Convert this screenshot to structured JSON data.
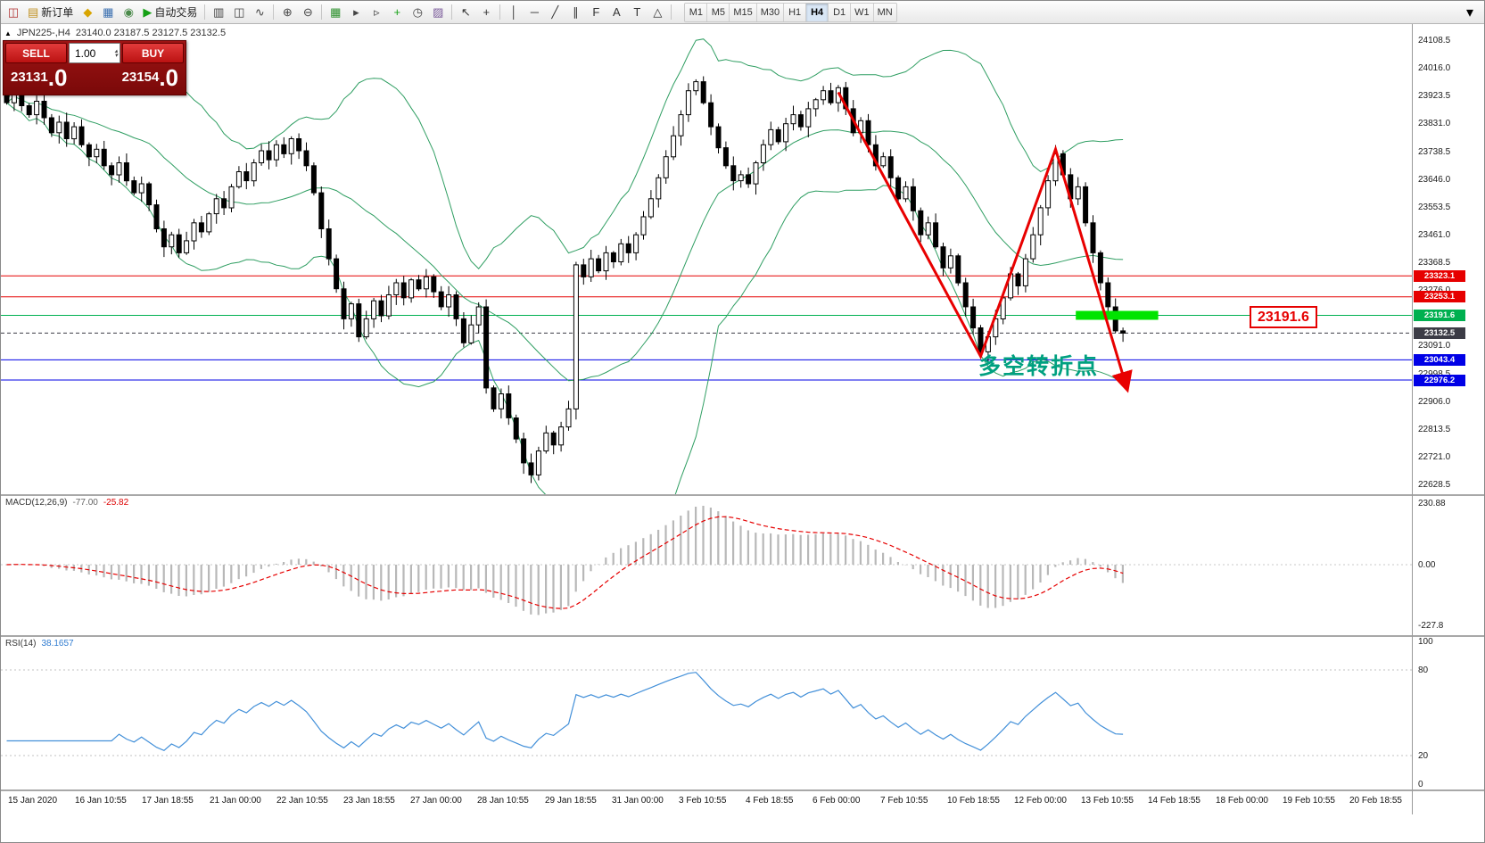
{
  "toolbar": {
    "buttons": [
      {
        "name": "new-chart",
        "glyph": "◫",
        "color": "#b03030"
      },
      {
        "name": "new-order",
        "glyph": "▤",
        "color": "#c09020",
        "label": "新订单"
      },
      {
        "name": "metaeditor",
        "glyph": "◆",
        "color": "#d8a400"
      },
      {
        "name": "market-watch",
        "glyph": "▦",
        "color": "#3a6fb0"
      },
      {
        "name": "navigator",
        "glyph": "◉",
        "color": "#4a8a4a"
      },
      {
        "name": "autotrading",
        "glyph": "▶",
        "color": "#15a015",
        "label": "自动交易"
      },
      {
        "sep": true
      },
      {
        "name": "bar-chart-mode",
        "glyph": "▥",
        "color": "#444"
      },
      {
        "name": "candlestick-mode",
        "glyph": "◫",
        "color": "#444"
      },
      {
        "name": "line-chart-mode",
        "glyph": "∿",
        "color": "#444"
      },
      {
        "sep": true
      },
      {
        "name": "zoom-in",
        "glyph": "⊕",
        "color": "#444"
      },
      {
        "name": "zoom-out",
        "glyph": "⊖",
        "color": "#444"
      },
      {
        "sep": true
      },
      {
        "name": "tile-windows",
        "glyph": "▦",
        "color": "#2a8f2a"
      },
      {
        "name": "auto-scroll",
        "glyph": "▸",
        "color": "#444"
      },
      {
        "name": "chart-shift",
        "glyph": "▹",
        "color": "#444"
      },
      {
        "name": "indicators",
        "glyph": "+",
        "color": "#15a015"
      },
      {
        "name": "periods",
        "glyph": "◷",
        "color": "#444"
      },
      {
        "name": "templates",
        "glyph": "▨",
        "color": "#7a5a9a"
      },
      {
        "sep": true
      },
      {
        "name": "cursor",
        "glyph": "↖",
        "color": "#333"
      },
      {
        "name": "crosshair",
        "glyph": "+",
        "color": "#333"
      },
      {
        "sep": true
      },
      {
        "name": "vertical-line",
        "glyph": "│",
        "color": "#333"
      },
      {
        "name": "horizontal-line",
        "glyph": "─",
        "color": "#333"
      },
      {
        "name": "trendline",
        "glyph": "╱",
        "color": "#333"
      },
      {
        "name": "equidistant-channel",
        "glyph": "∥",
        "color": "#333"
      },
      {
        "name": "fibonacci",
        "glyph": "F",
        "color": "#333"
      },
      {
        "name": "text",
        "glyph": "A",
        "color": "#333"
      },
      {
        "name": "text-label",
        "glyph": "T",
        "color": "#333"
      },
      {
        "name": "arrows-dropdown",
        "glyph": "△",
        "color": "#333"
      },
      {
        "sep": true
      }
    ],
    "timeframes": [
      "M1",
      "M5",
      "M15",
      "M30",
      "H1",
      "H4",
      "D1",
      "W1",
      "MN"
    ],
    "active_timeframe": "H4",
    "overflow_glyph": "▾"
  },
  "glyphs": {
    "spin_up": "▴",
    "spin_down": "▾",
    "collapse": "▲"
  },
  "chart": {
    "title": "JPN225-,H4",
    "ohlc": "23140.0 23187.5 23127.5 23132.5"
  },
  "trade_panel": {
    "sell_label": "SELL",
    "buy_label": "BUY",
    "volume": "1.00",
    "sell_price_int": "23131",
    "sell_price_frac": ".0",
    "buy_price_int": "23154",
    "buy_price_frac": ".0"
  },
  "annotations": {
    "turning_point_text": "多空转折点",
    "turning_point_color": "#00A080",
    "price_callout_text": "23191.6",
    "price_callout_color": "#E60000"
  },
  "chart_data": {
    "type": "candlestick",
    "symbol": "JPN225-",
    "timeframe": "H4",
    "last_bar": {
      "open": 23140.0,
      "high": 23187.5,
      "low": 23127.5,
      "close": 23132.5
    },
    "price_axis": {
      "min": 22628.5,
      "max": 24108.5,
      "ticks": [
        "24108.5",
        "24016.0",
        "23923.5",
        "23831.0",
        "23738.5",
        "23646.0",
        "23553.5",
        "23461.0",
        "23368.5",
        "23276.0",
        "23183.5",
        "23091.0",
        "22998.5",
        "22906.0",
        "22813.5",
        "22721.0",
        "22628.5"
      ]
    },
    "closes": [
      23900,
      23940,
      23890,
      23860,
      23905,
      23850,
      23800,
      23835,
      23780,
      23820,
      23760,
      23720,
      23745,
      23690,
      23660,
      23700,
      23640,
      23600,
      23630,
      23560,
      23480,
      23420,
      23460,
      23400,
      23440,
      23500,
      23470,
      23530,
      23580,
      23550,
      23620,
      23670,
      23640,
      23700,
      23740,
      23710,
      23760,
      23730,
      23780,
      23740,
      23690,
      23600,
      23480,
      23380,
      23280,
      23180,
      23230,
      23120,
      23180,
      23240,
      23190,
      23260,
      23300,
      23250,
      23310,
      23280,
      23320,
      23270,
      23220,
      23260,
      23180,
      23100,
      23160,
      23220,
      22950,
      22880,
      22930,
      22850,
      22780,
      22700,
      22660,
      22740,
      22800,
      22760,
      22820,
      22880,
      23360,
      23320,
      23380,
      23340,
      23400,
      23370,
      23430,
      23400,
      23460,
      23520,
      23580,
      23650,
      23720,
      23790,
      23860,
      23940,
      23970,
      23900,
      23820,
      23750,
      23690,
      23640,
      23660,
      23630,
      23700,
      23760,
      23810,
      23770,
      23830,
      23860,
      23820,
      23880,
      23910,
      23940,
      23900,
      23950,
      23880,
      23800,
      23840,
      23760,
      23690,
      23720,
      23650,
      23580,
      23620,
      23540,
      23460,
      23500,
      23420,
      23350,
      23390,
      23300,
      23220,
      23150,
      23070,
      23120,
      23180,
      23250,
      23330,
      23290,
      23380,
      23460,
      23550,
      23640,
      23730,
      23660,
      23580,
      23620,
      23500,
      23400,
      23300,
      23220,
      23140,
      23132.5
    ],
    "levels": [
      {
        "price": 23323.1,
        "label": "23323.1",
        "color": "#E60000",
        "style": "solid"
      },
      {
        "price": 23253.1,
        "label": "23253.1",
        "color": "#E60000",
        "style": "solid"
      },
      {
        "price": 23191.6,
        "label": "23191.6",
        "color": "#00B050",
        "style": "solid"
      },
      {
        "price": 23132.5,
        "label": "23132.5",
        "color": "#3C3C46",
        "style": "dashed",
        "current": true
      },
      {
        "price": 23043.4,
        "label": "23043.4",
        "color": "#0000E6",
        "style": "solid"
      },
      {
        "price": 22976.2,
        "label": "22976.2",
        "color": "#0000E6",
        "style": "solid"
      }
    ],
    "trend_path": [
      {
        "i": 111,
        "price": 23935
      },
      {
        "i": 130,
        "price": 23055
      },
      {
        "i": 140,
        "price": 23745
      },
      {
        "i": 149.5,
        "price": 22950
      }
    ],
    "highlight": {
      "from_i": 143,
      "to_i": 154,
      "price": 23191.6
    },
    "indicators": {
      "macd": {
        "label": "MACD(12,26,9)",
        "value_main": "-77.00",
        "value_signal": "-25.82",
        "axis_values": [
          230.88,
          0,
          -227.8
        ],
        "axis_tick_labels": [
          "230.88",
          "0.00",
          "-227.8"
        ]
      },
      "rsi": {
        "label": "RSI(14)",
        "value": "38.1657",
        "levels": [
          80,
          20
        ],
        "axis_values": [
          100,
          80,
          20,
          0
        ],
        "axis_tick_labels": [
          "100",
          "80",
          "20",
          "0"
        ]
      }
    },
    "time_ticks": [
      "15 Jan 2020",
      "16 Jan 10:55",
      "17 Jan 18:55",
      "21 Jan 00:00",
      "22 Jan 10:55",
      "23 Jan 18:55",
      "27 Jan 00:00",
      "28 Jan 10:55",
      "29 Jan 18:55",
      "31 Jan 00:00",
      "3 Feb 10:55",
      "4 Feb 18:55",
      "6 Feb 00:00",
      "7 Feb 10:55",
      "10 Feb 18:55",
      "12 Feb 00:00",
      "13 Feb 10:55",
      "14 Feb 18:55",
      "18 Feb 00:00",
      "19 Feb 10:55",
      "20 Feb 18:55"
    ],
    "colors": {
      "bull": "#FFFFFF",
      "bear": "#000000",
      "bands": "#2F9E62",
      "macd_hist": "#B8B8B8",
      "macd_signal": "#E60000",
      "rsi_line": "#4390D9",
      "arrow": "#E80000",
      "highlight": "#00E400"
    }
  }
}
